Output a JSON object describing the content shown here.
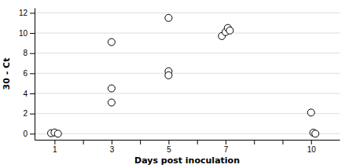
{
  "chart_data": {
    "type": "scatter",
    "x": [
      0.88,
      1.0,
      1.12,
      3.0,
      3.0,
      3.0,
      5.0,
      5.0,
      5.0,
      6.87,
      7.0,
      7.08,
      7.15,
      10.0,
      10.08,
      10.15
    ],
    "values": [
      0.05,
      0.12,
      0.0,
      9.1,
      4.5,
      3.1,
      11.5,
      6.2,
      5.8,
      9.7,
      10.1,
      10.5,
      10.25,
      2.1,
      0.1,
      0.0
    ],
    "xlim": [
      0.3,
      11.0
    ],
    "ylim": [
      -0.6,
      12.5
    ],
    "xticks": [
      1,
      {
        "value": 2,
        "label": null
      },
      3,
      {
        "value": 4,
        "label": null
      },
      5,
      {
        "value": 6,
        "label": null
      },
      7,
      {
        "value": 8,
        "label": null
      },
      {
        "value": 9,
        "label": null
      },
      10
    ],
    "yticks": [
      0,
      2,
      4,
      6,
      8,
      10,
      12
    ],
    "x_label": "Days post inoculation",
    "y_label": "30 - Ct",
    "color": "black",
    "marker": "circle-open",
    "grid": "y"
  }
}
